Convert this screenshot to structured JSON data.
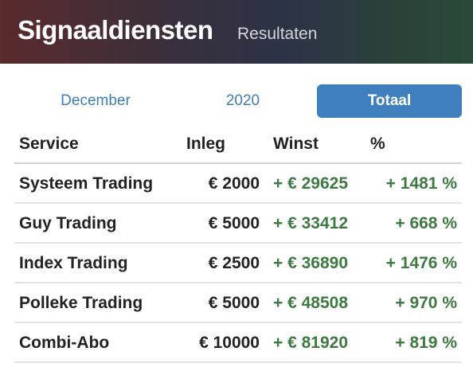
{
  "header": {
    "title": "Signaaldiensten",
    "subtitle": "Resultaten"
  },
  "tabs": [
    {
      "label": "December",
      "active": false
    },
    {
      "label": "2020",
      "active": false
    },
    {
      "label": "Totaal",
      "active": true
    }
  ],
  "colors": {
    "accent": "#3f7fbe",
    "positive": "#3d7a40",
    "text": "#222222"
  },
  "table": {
    "columns": [
      "Service",
      "Inleg",
      "Winst",
      "%"
    ],
    "rows": [
      {
        "service": "Systeem Trading",
        "inleg": "€ 2000",
        "winst": "+ € 29625",
        "pct": "+ 1481 %"
      },
      {
        "service": "Guy Trading",
        "inleg": "€ 5000",
        "winst": "+ € 33412",
        "pct": "+ 668 %"
      },
      {
        "service": "Index Trading",
        "inleg": "€ 2500",
        "winst": "+ € 36890",
        "pct": "+ 1476 %"
      },
      {
        "service": "Polleke Trading",
        "inleg": "€ 5000",
        "winst": "+ € 48508",
        "pct": "+ 970 %"
      },
      {
        "service": "Combi-Abo",
        "inleg": "€ 10000",
        "winst": "+ € 81920",
        "pct": "+ 819 %"
      }
    ]
  }
}
